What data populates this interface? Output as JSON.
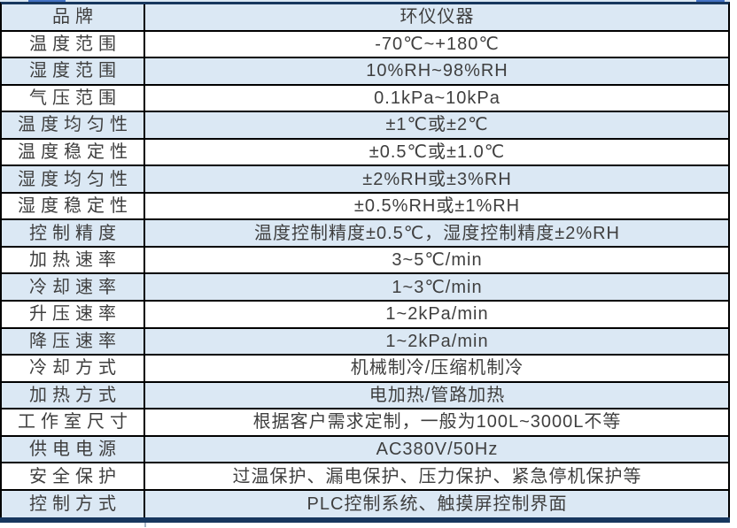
{
  "colors": {
    "row_alt_blue": "#dbe8f4",
    "table_navy_border": "#17375e",
    "grid_line": "#000000",
    "text": "#3f3f3f",
    "cropped_edge_blue": "#4472c4"
  },
  "table": {
    "brand_row_value": "环仪仪器",
    "rows": [
      {
        "label": "品牌",
        "value": "环仪仪器"
      },
      {
        "label": "温度范围",
        "value": "-70℃~+180℃"
      },
      {
        "label": "湿度范围",
        "value": "10%RH~98%RH"
      },
      {
        "label": "气压范围",
        "value": "0.1kPa~10kPa"
      },
      {
        "label": "温度均匀性",
        "value": "±1℃或±2℃"
      },
      {
        "label": "温度稳定性",
        "value": "±0.5℃或±1.0℃"
      },
      {
        "label": "湿度均匀性",
        "value": "±2%RH或±3%RH"
      },
      {
        "label": "湿度稳定性",
        "value": "±0.5%RH或±1%RH"
      },
      {
        "label": "控制精度",
        "value": "温度控制精度±0.5℃，湿度控制精度±2%RH"
      },
      {
        "label": "加热速率",
        "value": "3~5℃/min"
      },
      {
        "label": "冷却速率",
        "value": "1~3℃/min"
      },
      {
        "label": "升压速率",
        "value": "1~2kPa/min"
      },
      {
        "label": "降压速率",
        "value": "1~2kPa/min"
      },
      {
        "label": "冷却方式",
        "value": "机械制冷/压缩机制冷"
      },
      {
        "label": "加热方式",
        "value": "电加热/管路加热"
      },
      {
        "label": "工作室尺寸",
        "value": "根据客户需求定制，一般为100L~3000L不等"
      },
      {
        "label": "供电电源",
        "value": "AC380V/50Hz"
      },
      {
        "label": "安全保护",
        "value": "过温保护、漏电保护、压力保护、紧急停机保护等"
      },
      {
        "label": "控制方式",
        "value": "PLC控制系统、触摸屏控制界面"
      }
    ]
  }
}
